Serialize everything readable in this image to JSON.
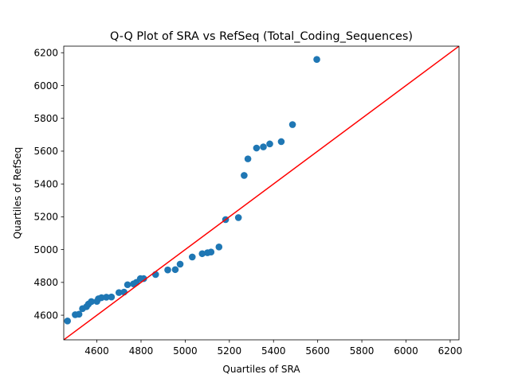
{
  "chart_data": {
    "type": "scatter",
    "title": "Q-Q Plot of SRA vs RefSeq (Total_Coding_Sequences)",
    "xlabel": "Quartiles of SRA",
    "ylabel": "Quartiles of RefSeq",
    "xlim": [
      4450,
      6240
    ],
    "ylim": [
      4450,
      6240
    ],
    "xticks": [
      4600,
      4800,
      5000,
      5200,
      5400,
      5600,
      5800,
      6000,
      6200
    ],
    "yticks": [
      4600,
      4800,
      5000,
      5200,
      5400,
      5600,
      5800,
      6000,
      6200
    ],
    "grid": false,
    "reference_line": {
      "from": [
        4450,
        4450
      ],
      "to": [
        6240,
        6240
      ],
      "color": "#ff0000"
    },
    "marker_color": "#1f77b4",
    "series": [
      {
        "x": [
          4467,
          4502,
          4519,
          4535,
          4553,
          4562,
          4575,
          4600,
          4607,
          4621,
          4643,
          4666,
          4700,
          4723,
          4739,
          4766,
          4779,
          4797,
          4812,
          4866,
          4921,
          4955,
          4977,
          5032,
          5077,
          5101,
          5117,
          5153,
          5183,
          5241,
          5267,
          5284,
          5323,
          5354,
          5383,
          5435,
          5486,
          5596
        ],
        "y": [
          4565,
          4603,
          4606,
          4640,
          4652,
          4668,
          4683,
          4684,
          4700,
          4707,
          4710,
          4711,
          4738,
          4741,
          4786,
          4791,
          4800,
          4823,
          4823,
          4848,
          4876,
          4878,
          4911,
          4955,
          4975,
          4981,
          4985,
          5016,
          5183,
          5195,
          5452,
          5553,
          5619,
          5626,
          5644,
          5658,
          5762,
          6159
        ]
      }
    ]
  }
}
